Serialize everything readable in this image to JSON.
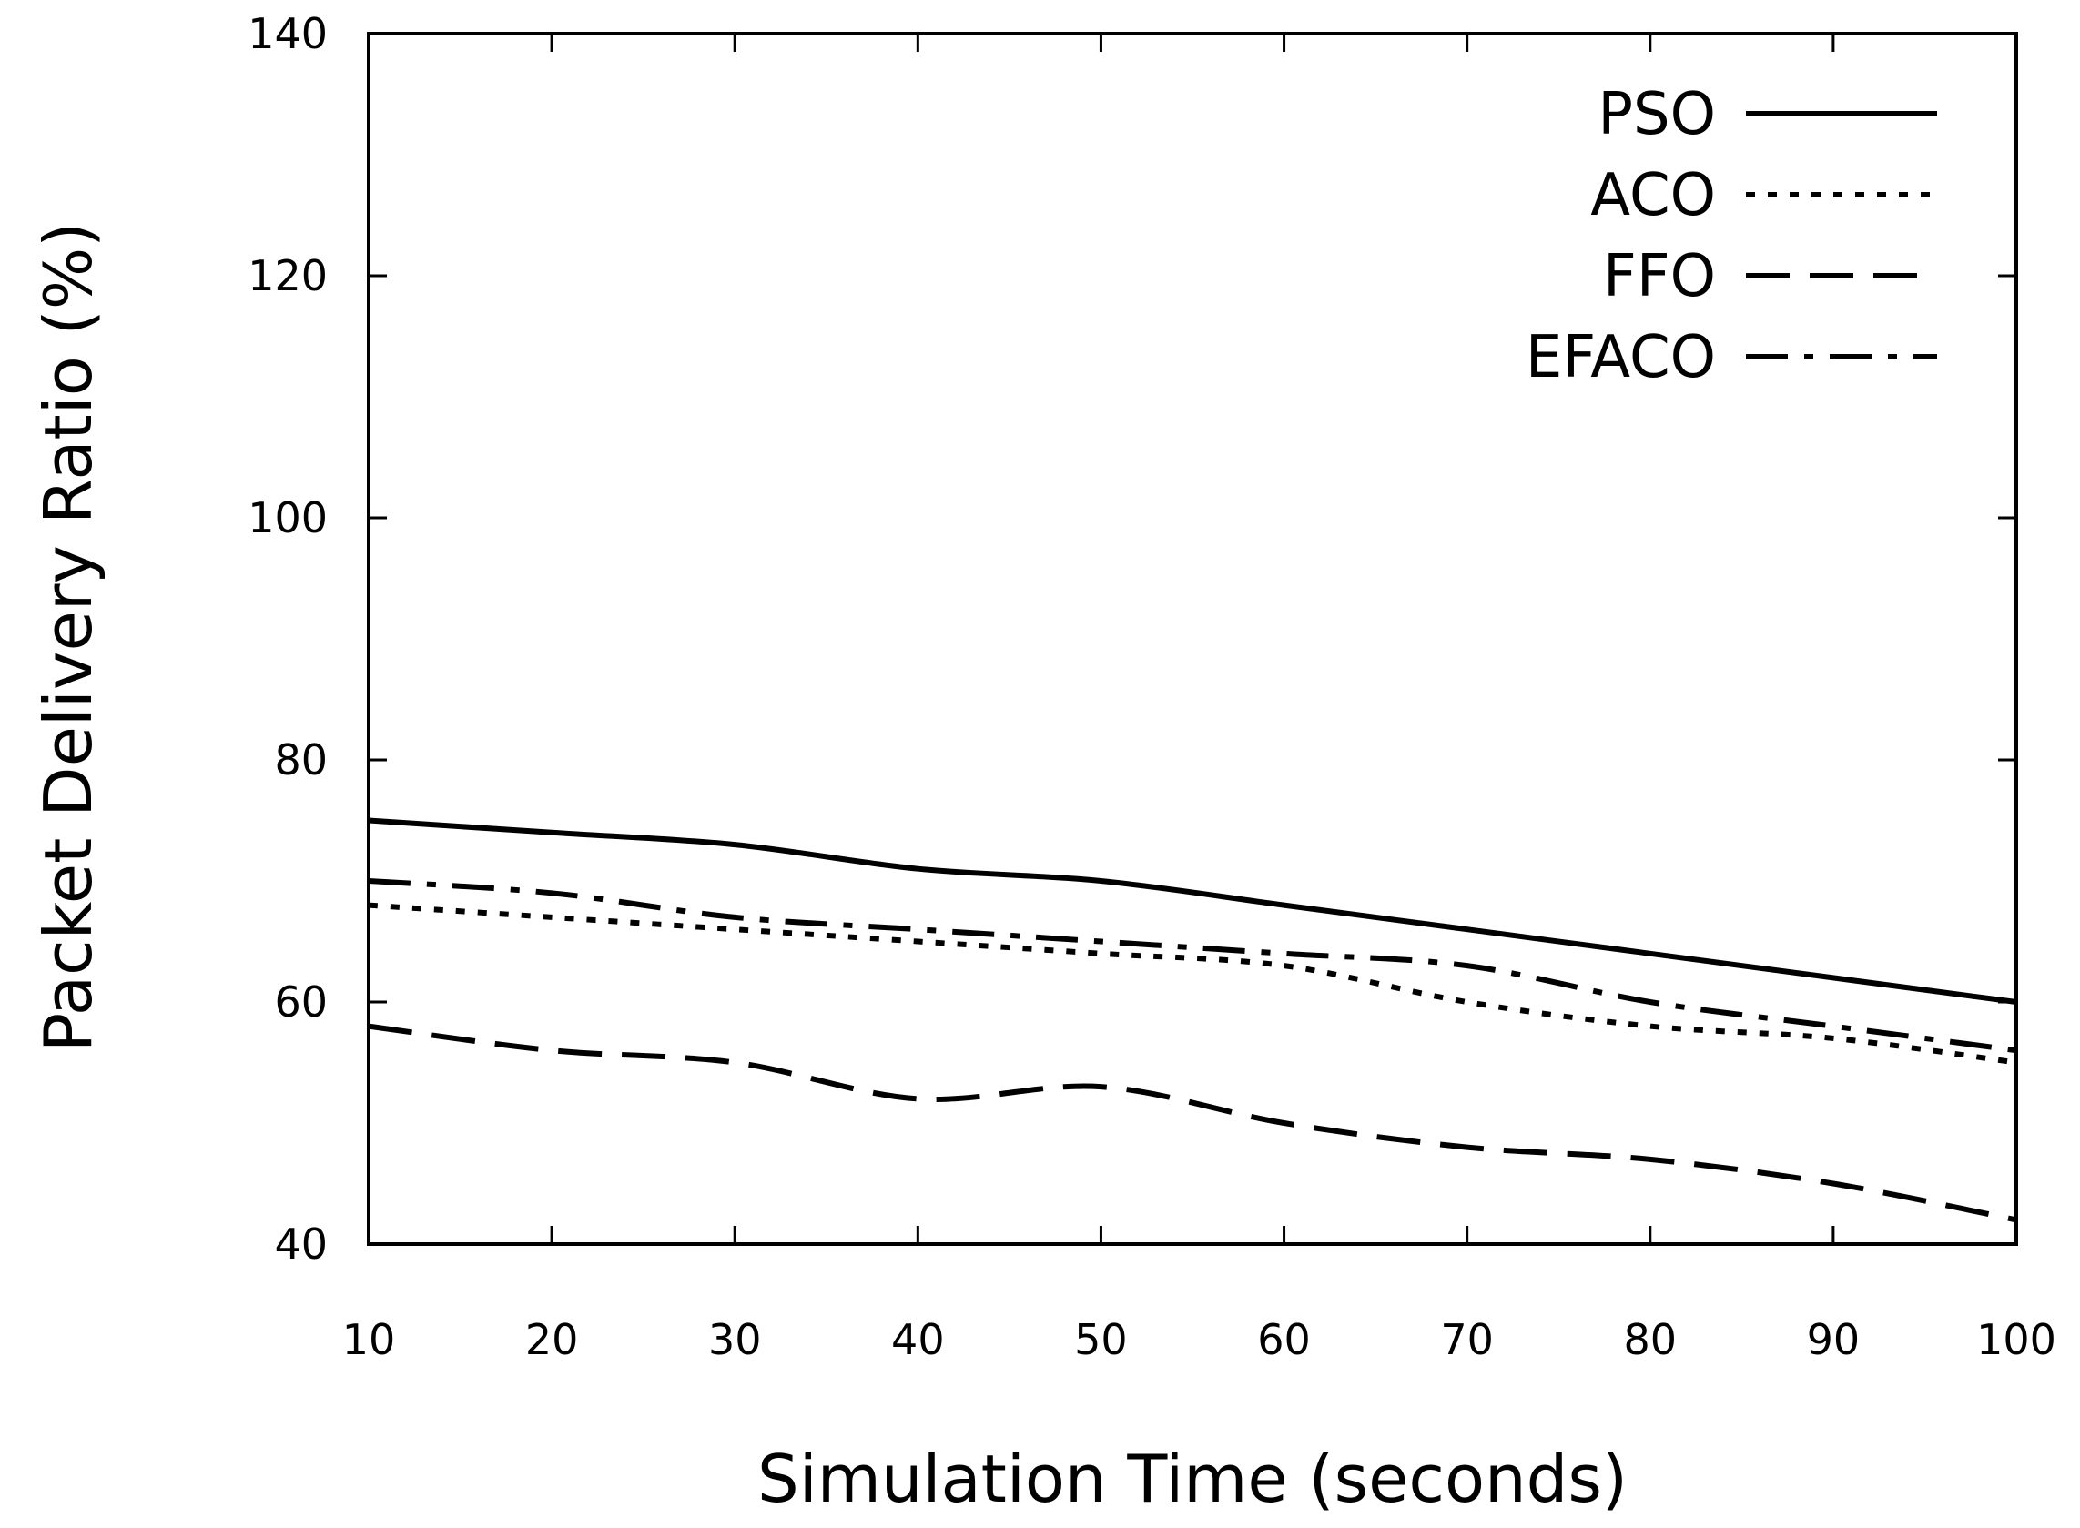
{
  "chart_data": {
    "type": "line",
    "title": "",
    "xlabel": "Simulation Time (seconds)",
    "ylabel": "Packet Delivery Ratio (%)",
    "xlim": [
      10,
      100
    ],
    "ylim": [
      40,
      140
    ],
    "x_ticks": [
      10,
      20,
      30,
      40,
      50,
      60,
      70,
      80,
      90,
      100
    ],
    "y_ticks": [
      40,
      60,
      80,
      100,
      120,
      140
    ],
    "grid": false,
    "legend_position": "top-right",
    "x": [
      10,
      20,
      30,
      40,
      50,
      60,
      70,
      80,
      90,
      100
    ],
    "series": [
      {
        "name": "PSO",
        "style": "solid",
        "values": [
          75,
          74,
          73,
          71,
          70,
          68,
          66,
          64,
          62,
          60
        ]
      },
      {
        "name": "ACO",
        "style": "dotted",
        "values": [
          68,
          67,
          66,
          65,
          64,
          63,
          60,
          58,
          57,
          55
        ]
      },
      {
        "name": "FFO",
        "style": "dashed",
        "values": [
          58,
          56,
          55,
          52,
          53,
          50,
          48,
          47,
          45,
          42
        ]
      },
      {
        "name": "EFACO",
        "style": "dash-dot",
        "values": [
          70,
          69,
          67,
          66,
          65,
          64,
          63,
          60,
          58,
          56
        ]
      }
    ]
  }
}
